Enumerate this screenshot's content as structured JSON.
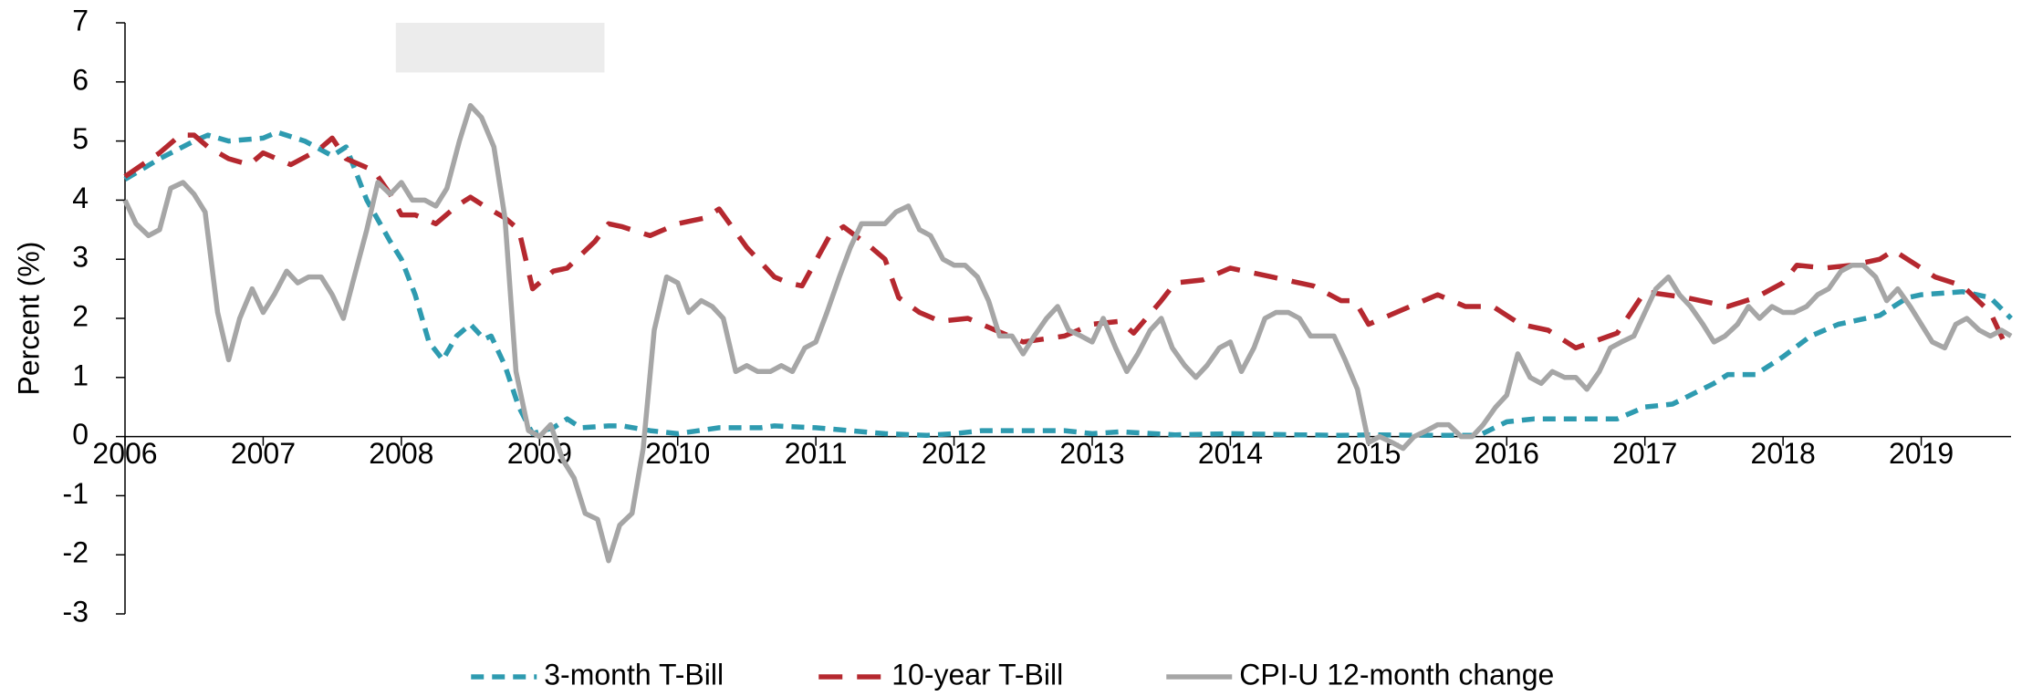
{
  "chart_data": {
    "type": "line",
    "ylabel": "Percent (%)",
    "xlim": [
      2006,
      2019.65
    ],
    "xticks": [
      2006,
      2007,
      2008,
      2009,
      2010,
      2011,
      2012,
      2013,
      2014,
      2015,
      2016,
      2017,
      2018,
      2019
    ],
    "ylim": [
      -3,
      7
    ],
    "yticks": [
      -3,
      -2,
      -1,
      0,
      1,
      2,
      3,
      4,
      5,
      6,
      7
    ],
    "shaded_region": {
      "x": [
        2007.96,
        2009.47
      ],
      "color": "#ececec"
    },
    "legend": "bottom",
    "series": [
      {
        "name": "3-month T-Bill",
        "color": "#2e9bb0",
        "dash": "short",
        "x": [
          2006.0,
          2006.25,
          2006.5,
          2006.6,
          2006.75,
          2007.0,
          2007.1,
          2007.3,
          2007.5,
          2007.6,
          2007.75,
          2007.92,
          2008.0,
          2008.1,
          2008.2,
          2008.3,
          2008.4,
          2008.5,
          2008.6,
          2008.65,
          2008.75,
          2008.85,
          2008.95,
          2009.1,
          2009.2,
          2009.3,
          2009.5,
          2009.6,
          2009.8,
          2010.0,
          2010.3,
          2010.6,
          2010.7,
          2011.0,
          2011.5,
          2011.8,
          2012.0,
          2012.2,
          2012.8,
          2013.0,
          2013.2,
          2013.6,
          2014.0,
          2014.5,
          2014.8,
          2015.0,
          2015.5,
          2015.8,
          2016.0,
          2016.2,
          2016.8,
          2017.0,
          2017.2,
          2017.5,
          2017.6,
          2017.8,
          2018.0,
          2018.2,
          2018.4,
          2018.7,
          2018.9,
          2019.0,
          2019.3,
          2019.5,
          2019.65
        ],
        "values": [
          4.35,
          4.7,
          5.0,
          5.1,
          5.0,
          5.05,
          5.15,
          5.0,
          4.75,
          4.9,
          4.0,
          3.3,
          3.0,
          2.4,
          1.6,
          1.3,
          1.7,
          1.9,
          1.65,
          1.7,
          1.2,
          0.5,
          0.05,
          0.15,
          0.3,
          0.15,
          0.18,
          0.18,
          0.1,
          0.05,
          0.15,
          0.15,
          0.18,
          0.15,
          0.05,
          0.02,
          0.05,
          0.1,
          0.1,
          0.05,
          0.08,
          0.03,
          0.05,
          0.03,
          0.02,
          0.03,
          0.02,
          0.02,
          0.25,
          0.3,
          0.3,
          0.5,
          0.55,
          0.9,
          1.05,
          1.05,
          1.35,
          1.7,
          1.9,
          2.05,
          2.35,
          2.4,
          2.45,
          2.35,
          2.0
        ]
      },
      {
        "name": "10-year T-Bill",
        "color": "#b5282f",
        "dash": "long",
        "x": [
          2006.0,
          2006.25,
          2006.4,
          2006.5,
          2006.6,
          2006.75,
          2006.9,
          2007.0,
          2007.2,
          2007.4,
          2007.5,
          2007.6,
          2007.8,
          2007.92,
          2008.0,
          2008.1,
          2008.25,
          2008.4,
          2008.5,
          2008.6,
          2008.75,
          2008.85,
          2008.95,
          2009.1,
          2009.2,
          2009.4,
          2009.5,
          2009.6,
          2009.8,
          2010.0,
          2010.2,
          2010.3,
          2010.5,
          2010.7,
          2010.8,
          2010.9,
          2011.1,
          2011.2,
          2011.4,
          2011.5,
          2011.6,
          2011.75,
          2011.9,
          2012.1,
          2012.3,
          2012.5,
          2012.8,
          2013.0,
          2013.2,
          2013.3,
          2013.5,
          2013.6,
          2013.8,
          2014.0,
          2014.3,
          2014.6,
          2014.8,
          2014.9,
          2015.0,
          2015.3,
          2015.5,
          2015.7,
          2015.9,
          2016.1,
          2016.3,
          2016.5,
          2016.8,
          2017.0,
          2017.3,
          2017.6,
          2017.8,
          2018.0,
          2018.1,
          2018.3,
          2018.5,
          2018.7,
          2018.8,
          2018.9,
          2019.1,
          2019.3,
          2019.5,
          2019.6
        ],
        "values": [
          4.4,
          4.8,
          5.1,
          5.1,
          4.9,
          4.7,
          4.6,
          4.8,
          4.6,
          4.85,
          5.05,
          4.7,
          4.5,
          4.1,
          3.75,
          3.75,
          3.6,
          3.9,
          4.05,
          3.9,
          3.7,
          3.5,
          2.5,
          2.8,
          2.85,
          3.3,
          3.6,
          3.55,
          3.4,
          3.6,
          3.7,
          3.85,
          3.2,
          2.7,
          2.6,
          2.55,
          3.4,
          3.55,
          3.2,
          3.0,
          2.35,
          2.1,
          1.95,
          2.0,
          1.8,
          1.6,
          1.7,
          1.9,
          1.95,
          1.75,
          2.3,
          2.6,
          2.65,
          2.85,
          2.7,
          2.55,
          2.3,
          2.3,
          1.9,
          2.2,
          2.4,
          2.2,
          2.2,
          1.9,
          1.8,
          1.5,
          1.75,
          2.45,
          2.35,
          2.2,
          2.35,
          2.6,
          2.9,
          2.85,
          2.9,
          3.0,
          3.15,
          3.0,
          2.7,
          2.55,
          2.1,
          1.6
        ]
      },
      {
        "name": "CPI-U 12-month change",
        "color": "#a6a6a6",
        "dash": "solid",
        "x": [
          2006.0,
          2006.08,
          2006.17,
          2006.25,
          2006.33,
          2006.42,
          2006.5,
          2006.58,
          2006.67,
          2006.75,
          2006.83,
          2006.92,
          2007.0,
          2007.08,
          2007.17,
          2007.25,
          2007.33,
          2007.42,
          2007.5,
          2007.58,
          2007.67,
          2007.75,
          2007.83,
          2007.92,
          2008.0,
          2008.08,
          2008.17,
          2008.25,
          2008.33,
          2008.42,
          2008.5,
          2008.58,
          2008.67,
          2008.75,
          2008.83,
          2008.92,
          2009.0,
          2009.08,
          2009.17,
          2009.25,
          2009.33,
          2009.42,
          2009.5,
          2009.58,
          2009.67,
          2009.75,
          2009.83,
          2009.92,
          2010.0,
          2010.08,
          2010.17,
          2010.25,
          2010.33,
          2010.42,
          2010.5,
          2010.58,
          2010.67,
          2010.75,
          2010.83,
          2010.92,
          2011.0,
          2011.08,
          2011.17,
          2011.25,
          2011.33,
          2011.42,
          2011.5,
          2011.58,
          2011.67,
          2011.75,
          2011.83,
          2011.92,
          2012.0,
          2012.08,
          2012.17,
          2012.25,
          2012.33,
          2012.42,
          2012.5,
          2012.58,
          2012.67,
          2012.75,
          2012.83,
          2012.92,
          2013.0,
          2013.08,
          2013.17,
          2013.25,
          2013.33,
          2013.42,
          2013.5,
          2013.58,
          2013.67,
          2013.75,
          2013.83,
          2013.92,
          2014.0,
          2014.08,
          2014.17,
          2014.25,
          2014.33,
          2014.42,
          2014.5,
          2014.58,
          2014.67,
          2014.75,
          2014.83,
          2014.92,
          2015.0,
          2015.08,
          2015.17,
          2015.25,
          2015.33,
          2015.42,
          2015.5,
          2015.58,
          2015.67,
          2015.75,
          2015.83,
          2015.92,
          2016.0,
          2016.08,
          2016.17,
          2016.25,
          2016.33,
          2016.42,
          2016.5,
          2016.58,
          2016.67,
          2016.75,
          2016.83,
          2016.92,
          2017.0,
          2017.08,
          2017.17,
          2017.25,
          2017.33,
          2017.42,
          2017.5,
          2017.58,
          2017.67,
          2017.75,
          2017.83,
          2017.92,
          2018.0,
          2018.08,
          2018.17,
          2018.25,
          2018.33,
          2018.42,
          2018.5,
          2018.58,
          2018.67,
          2018.75,
          2018.83,
          2018.92,
          2019.0,
          2019.08,
          2019.17,
          2019.25,
          2019.33,
          2019.42,
          2019.5,
          2019.58,
          2019.65
        ],
        "values": [
          4.0,
          3.6,
          3.4,
          3.5,
          4.2,
          4.3,
          4.1,
          3.8,
          2.1,
          1.3,
          2.0,
          2.5,
          2.1,
          2.4,
          2.8,
          2.6,
          2.7,
          2.7,
          2.4,
          2.0,
          2.8,
          3.5,
          4.3,
          4.1,
          4.3,
          4.0,
          4.0,
          3.9,
          4.2,
          5.0,
          5.6,
          5.4,
          4.9,
          3.7,
          1.1,
          0.1,
          0.0,
          0.2,
          -0.4,
          -0.7,
          -1.3,
          -1.4,
          -2.1,
          -1.5,
          -1.3,
          -0.2,
          1.8,
          2.7,
          2.6,
          2.1,
          2.3,
          2.2,
          2.0,
          1.1,
          1.2,
          1.1,
          1.1,
          1.2,
          1.1,
          1.5,
          1.6,
          2.1,
          2.7,
          3.2,
          3.6,
          3.6,
          3.6,
          3.8,
          3.9,
          3.5,
          3.4,
          3.0,
          2.9,
          2.9,
          2.7,
          2.3,
          1.7,
          1.7,
          1.4,
          1.7,
          2.0,
          2.2,
          1.8,
          1.7,
          1.6,
          2.0,
          1.5,
          1.1,
          1.4,
          1.8,
          2.0,
          1.5,
          1.2,
          1.0,
          1.2,
          1.5,
          1.6,
          1.1,
          1.5,
          2.0,
          2.1,
          2.1,
          2.0,
          1.7,
          1.7,
          1.7,
          1.3,
          0.8,
          -0.1,
          0.0,
          -0.1,
          -0.2,
          0.0,
          0.1,
          0.2,
          0.2,
          0.0,
          0.0,
          0.2,
          0.5,
          0.7,
          1.4,
          1.0,
          0.9,
          1.1,
          1.0,
          1.0,
          0.8,
          1.1,
          1.5,
          1.6,
          1.7,
          2.1,
          2.5,
          2.7,
          2.4,
          2.2,
          1.9,
          1.6,
          1.7,
          1.9,
          2.2,
          2.0,
          2.2,
          2.1,
          2.1,
          2.2,
          2.4,
          2.5,
          2.8,
          2.9,
          2.9,
          2.7,
          2.3,
          2.5,
          2.2,
          1.9,
          1.6,
          1.5,
          1.9,
          2.0,
          1.8,
          1.7,
          1.8,
          1.7
        ]
      }
    ]
  }
}
